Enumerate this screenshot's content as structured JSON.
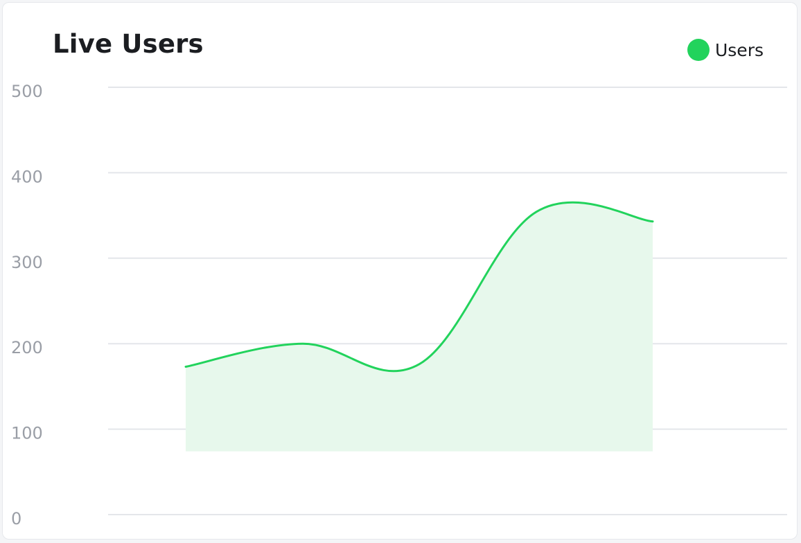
{
  "card": {
    "title": "Live Users"
  },
  "legend": {
    "label": "Users",
    "color": "#22d35c"
  },
  "chart_data": {
    "type": "area",
    "title": "Live Users",
    "xlabel": "",
    "ylabel": "",
    "ylim": [
      0,
      500
    ],
    "yticks": [
      0,
      100,
      200,
      300,
      400,
      500
    ],
    "grid": true,
    "legend_position": "top-right",
    "series": [
      {
        "name": "Users",
        "color": "#22d35c",
        "fill": "#e7f8ec",
        "baseline": 74,
        "values": [
          173,
          200,
          176,
          354,
          343
        ]
      }
    ]
  }
}
